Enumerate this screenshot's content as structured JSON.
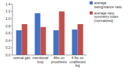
{
  "chart_data": {
    "type": "bar",
    "categories": [
      "normal gait",
      "intentional limp",
      "4lbs on prosthesis",
      "4 lbs on unaffected\nleg"
    ],
    "series": [
      {
        "name": "average\nswing/stance ratio",
        "color": "#4472c4",
        "values": [
          0.68,
          1.15,
          0.68,
          0.7
        ]
      },
      {
        "name": "average step\nsymmetry index\n(normalized)",
        "color": "#c0504d",
        "values": [
          0.85,
          0.77,
          1.2,
          0.85
        ]
      }
    ],
    "ylim": [
      0,
      1.4
    ],
    "yticks": [
      {
        "value": 0,
        "label": "0.0"
      },
      0.2,
      0.4,
      0.6,
      0.8,
      {
        "value": 1.0,
        "label": "1.0"
      },
      1.2,
      1.4
    ],
    "legend": "right"
  }
}
